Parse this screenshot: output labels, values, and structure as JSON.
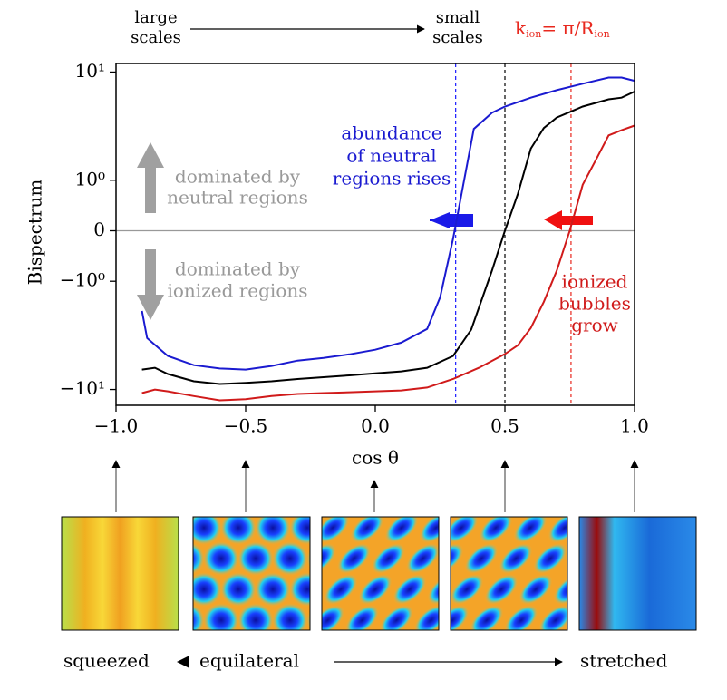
{
  "chart_data": {
    "type": "line",
    "ylabel": "Bispectrum",
    "xlabel": "cos θ",
    "yscale": "symlog",
    "linthresh": 1,
    "xlim": [
      -1,
      1
    ],
    "ylim": [
      -14,
      12
    ],
    "xticks": [
      {
        "value": -1,
        "label": "−1.0"
      },
      {
        "value": -0.5,
        "label": "−0.5"
      },
      {
        "value": 0,
        "label": "0.0"
      },
      {
        "value": 0.5,
        "label": "0.5"
      },
      {
        "value": 1,
        "label": "1.0"
      }
    ],
    "yticks": [
      {
        "value": 10,
        "label": "10¹"
      },
      {
        "value": 1,
        "label": "10⁰"
      },
      0,
      {
        "value": -1,
        "label": "−10⁰"
      },
      {
        "value": -10,
        "label": "−10¹"
      }
    ],
    "hline": {
      "y": 0,
      "color": "#999999"
    },
    "vlines": [
      {
        "x": 0.31,
        "color": "#1a1aff"
      },
      {
        "x": 0.5,
        "color": "#000000"
      },
      {
        "x": 0.755,
        "color": "#e8281e"
      }
    ],
    "series": [
      {
        "color": "#1a1ad0",
        "x": [
          -0.9,
          -0.88,
          -0.8,
          -0.7,
          -0.6,
          -0.5,
          -0.4,
          -0.3,
          -0.2,
          -0.1,
          0.0,
          0.1,
          0.2,
          0.25,
          0.3,
          0.38,
          0.45,
          0.5,
          0.6,
          0.7,
          0.8,
          0.9,
          0.95,
          1.0
        ],
        "values": [
          -1.88,
          -3.35,
          -4.9,
          -5.96,
          -6.4,
          -6.55,
          -6.06,
          -5.41,
          -5.1,
          -4.73,
          -4.29,
          -3.69,
          -2.76,
          -1.41,
          -0.16,
          2.98,
          4.2,
          4.8,
          5.8,
          6.8,
          7.8,
          8.9,
          8.9,
          8.3
        ]
      },
      {
        "color": "#000000",
        "x": [
          -0.9,
          -0.85,
          -0.8,
          -0.7,
          -0.6,
          -0.5,
          -0.4,
          -0.3,
          -0.2,
          -0.1,
          0.0,
          0.1,
          0.2,
          0.3,
          0.37,
          0.45,
          0.5,
          0.55,
          0.6,
          0.65,
          0.7,
          0.8,
          0.9,
          0.95,
          1.0
        ],
        "values": [
          -6.55,
          -6.3,
          -7.2,
          -8.4,
          -8.9,
          -8.7,
          -8.4,
          -8.0,
          -7.7,
          -7.4,
          -7.1,
          -6.8,
          -6.3,
          -4.9,
          -2.8,
          -0.79,
          0,
          0.73,
          1.96,
          3.04,
          3.8,
          4.8,
          5.6,
          5.8,
          6.6
        ]
      },
      {
        "color": "#d01a1a",
        "x": [
          -0.9,
          -0.85,
          -0.8,
          -0.7,
          -0.6,
          -0.5,
          -0.4,
          -0.3,
          -0.2,
          -0.1,
          0.0,
          0.1,
          0.2,
          0.3,
          0.4,
          0.5,
          0.55,
          0.6,
          0.65,
          0.7,
          0.75,
          0.8,
          0.85,
          0.9,
          0.95,
          1.0
        ],
        "values": [
          -10.8,
          -10.0,
          -10.4,
          -11.5,
          -12.6,
          -12.3,
          -11.5,
          -11.0,
          -10.8,
          -10.6,
          -10.4,
          -10.2,
          -9.6,
          -8.0,
          -6.3,
          -4.7,
          -3.9,
          -2.7,
          -1.55,
          -0.79,
          0,
          0.91,
          1.53,
          2.6,
          2.9,
          3.2
        ]
      }
    ],
    "top_left": [
      "large",
      "scales"
    ],
    "top_right": [
      "small",
      "scales"
    ],
    "kion": {
      "k": "k",
      "sub1": "ion",
      "mid": "= π/R",
      "sub2": "ion"
    },
    "note_blue": [
      "abundance",
      "of neutral",
      "regions rises"
    ],
    "note_red": [
      "ionized",
      "bubbles",
      "grow"
    ],
    "note_up": [
      "dominated by",
      "neutral regions"
    ],
    "note_down": [
      "dominated by",
      "ionized regions"
    ],
    "bottom": {
      "left": "squeezed",
      "middle": "equilateral",
      "right": "stretched"
    }
  }
}
